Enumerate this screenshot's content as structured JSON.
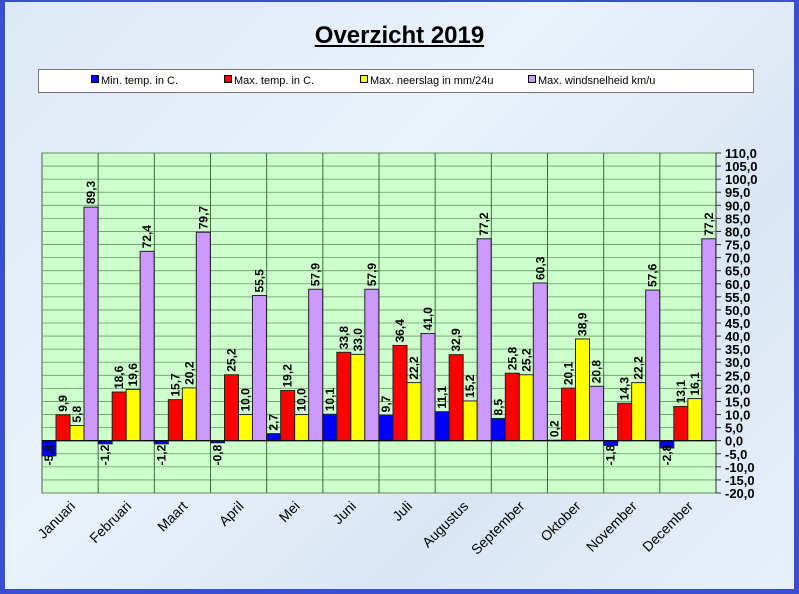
{
  "chart_data": {
    "type": "bar",
    "title": "Overzicht 2019",
    "xlabel": "",
    "ylabel": "",
    "ylim": [
      -20,
      110
    ],
    "ytick_step": 5,
    "yticks": [
      "110,0",
      "105,0",
      "100,0",
      "95,0",
      "90,0",
      "85,0",
      "80,0",
      "75,0",
      "70,0",
      "65,0",
      "60,0",
      "55,0",
      "50,0",
      "45,0",
      "40,0",
      "35,0",
      "30,0",
      "25,0",
      "20,0",
      "15,0",
      "10,0",
      "5,0",
      "0,0",
      "-5,0",
      "-10,0",
      "-15,0",
      "-20,0"
    ],
    "y_axis_side": "right",
    "grid": true,
    "legend_position": "top",
    "categories": [
      "Januari",
      "Februari",
      "Maart",
      "April",
      "Mei",
      "Juni",
      "Juli",
      "Augustus",
      "September",
      "Oktober",
      "November",
      "December"
    ],
    "series": [
      {
        "name": "Min. temp. in C.",
        "color": "#0000ff",
        "values": [
          -5.8,
          -1.2,
          -1.2,
          -0.8,
          2.7,
          10.1,
          9.7,
          11.1,
          8.5,
          0.2,
          -1.8,
          -2.8
        ],
        "labels": [
          "-5,8",
          "-1,2",
          "-1,2",
          "-0,8",
          "2,7",
          "10,1",
          "9,7",
          "11,1",
          "8,5",
          "0,2",
          "-1,8",
          "-2,8"
        ]
      },
      {
        "name": "Max. temp. in C.",
        "color": "#ff0000",
        "values": [
          9.9,
          18.6,
          15.7,
          25.2,
          19.2,
          33.8,
          36.4,
          32.9,
          25.8,
          20.1,
          14.3,
          13.1
        ],
        "labels": [
          "9,9",
          "18,6",
          "15,7",
          "25,2",
          "19,2",
          "33,8",
          "36,4",
          "32,9",
          "25,8",
          "20,1",
          "14,3",
          "13,1"
        ]
      },
      {
        "name": "Max. neerslag in mm/24u",
        "color": "#ffff00",
        "values": [
          5.8,
          19.6,
          20.2,
          10.0,
          10.0,
          33.0,
          22.2,
          15.2,
          25.2,
          38.9,
          22.2,
          16.1
        ],
        "labels": [
          "5,8",
          "19,6",
          "20,2",
          "10,0",
          "10,0",
          "33,0",
          "22,2",
          "15,2",
          "25,2",
          "38,9",
          "22,2",
          "16,1"
        ]
      },
      {
        "name": "Max. windsnelheid km/u",
        "color": "#cc99ff",
        "values": [
          89.3,
          72.4,
          79.7,
          55.5,
          57.9,
          57.9,
          41.0,
          77.2,
          60.3,
          20.8,
          57.6,
          77.2
        ],
        "labels": [
          "89,3",
          "72,4",
          "79,7",
          "55,5",
          "57,9",
          "57,9",
          "41,0",
          "77,2",
          "60,3",
          "20,8",
          "57,6",
          "77,2"
        ]
      }
    ],
    "colors": {
      "plot_background": "#ccffcc",
      "page_background": "#e4eef8",
      "frame_border": "#3a4fd0"
    }
  }
}
